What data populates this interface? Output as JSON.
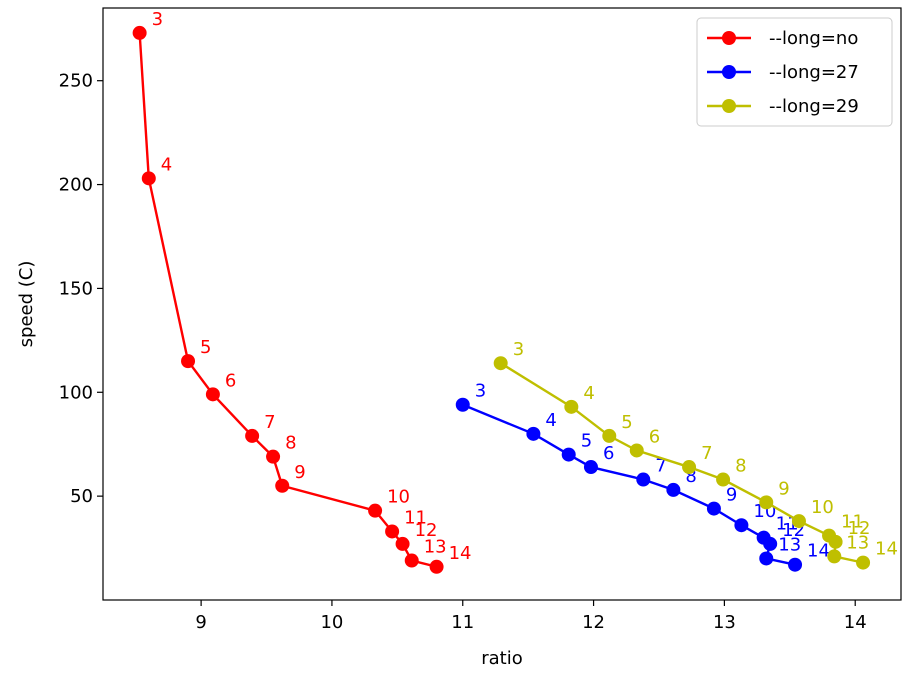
{
  "chart_data": {
    "type": "line",
    "xlabel": "ratio",
    "ylabel": "speed (C)",
    "xlim": [
      8.25,
      14.35
    ],
    "ylim": [
      0,
      285
    ],
    "xticks": [
      9,
      10,
      11,
      12,
      13,
      14
    ],
    "yticks": [
      50,
      100,
      150,
      200,
      250
    ],
    "grid": false,
    "legend_position": "top-right",
    "series": [
      {
        "name": "--long=no",
        "color": "#ff0000",
        "points": [
          {
            "x": 8.53,
            "y": 273,
            "label": "3"
          },
          {
            "x": 8.6,
            "y": 203,
            "label": "4"
          },
          {
            "x": 8.9,
            "y": 115,
            "label": "5"
          },
          {
            "x": 9.09,
            "y": 99,
            "label": "6"
          },
          {
            "x": 9.39,
            "y": 79,
            "label": "7"
          },
          {
            "x": 9.55,
            "y": 69,
            "label": "8"
          },
          {
            "x": 9.62,
            "y": 55,
            "label": "9"
          },
          {
            "x": 10.33,
            "y": 43,
            "label": "10"
          },
          {
            "x": 10.46,
            "y": 33,
            "label": "11"
          },
          {
            "x": 10.54,
            "y": 27,
            "label": "12"
          },
          {
            "x": 10.61,
            "y": 19,
            "label": "13"
          },
          {
            "x": 10.8,
            "y": 16,
            "label": "14"
          }
        ]
      },
      {
        "name": "--long=27",
        "color": "#0000ff",
        "points": [
          {
            "x": 11.0,
            "y": 94,
            "label": "3"
          },
          {
            "x": 11.54,
            "y": 80,
            "label": "4"
          },
          {
            "x": 11.81,
            "y": 70,
            "label": "5"
          },
          {
            "x": 11.98,
            "y": 64,
            "label": "6"
          },
          {
            "x": 12.38,
            "y": 58,
            "label": "7"
          },
          {
            "x": 12.61,
            "y": 53,
            "label": "8"
          },
          {
            "x": 12.92,
            "y": 44,
            "label": "9"
          },
          {
            "x": 13.13,
            "y": 36,
            "label": "10"
          },
          {
            "x": 13.3,
            "y": 30,
            "label": "11"
          },
          {
            "x": 13.35,
            "y": 27,
            "label": "12"
          },
          {
            "x": 13.32,
            "y": 20,
            "label": "13"
          },
          {
            "x": 13.54,
            "y": 17,
            "label": "14"
          }
        ]
      },
      {
        "name": "--long=29",
        "color": "#bfbf00",
        "points": [
          {
            "x": 11.29,
            "y": 114,
            "label": "3"
          },
          {
            "x": 11.83,
            "y": 93,
            "label": "4"
          },
          {
            "x": 12.12,
            "y": 79,
            "label": "5"
          },
          {
            "x": 12.33,
            "y": 72,
            "label": "6"
          },
          {
            "x": 12.73,
            "y": 64,
            "label": "7"
          },
          {
            "x": 12.99,
            "y": 58,
            "label": "8"
          },
          {
            "x": 13.32,
            "y": 47,
            "label": "9"
          },
          {
            "x": 13.57,
            "y": 38,
            "label": "10"
          },
          {
            "x": 13.8,
            "y": 31,
            "label": "11"
          },
          {
            "x": 13.85,
            "y": 28,
            "label": "12"
          },
          {
            "x": 13.84,
            "y": 21,
            "label": "13"
          },
          {
            "x": 14.06,
            "y": 18,
            "label": "14"
          }
        ]
      }
    ]
  }
}
